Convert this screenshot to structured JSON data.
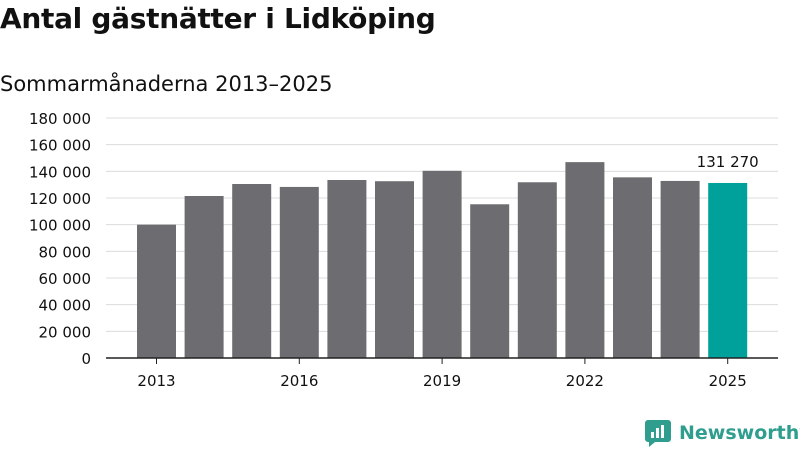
{
  "header": {
    "title": "Antal gästnätter i Lidköping",
    "subtitle": "Sommarmånaderna 2013–2025"
  },
  "colors": {
    "bar": "#6d6c70",
    "highlight": "#00a19a",
    "grid": "#dcdcdc",
    "axis": "#222222",
    "text": "#111111",
    "brand": "#2f9e8e"
  },
  "chart_data": {
    "type": "bar",
    "title": "Antal gästnätter i Lidköping",
    "subtitle": "Sommarmånaderna 2013–2025",
    "xlabel": "",
    "ylabel": "",
    "categories": [
      "2013",
      "2014",
      "2015",
      "2016",
      "2017",
      "2018",
      "2019",
      "2020",
      "2021",
      "2022",
      "2023",
      "2024",
      "2025"
    ],
    "x_tick_labels": [
      "2013",
      "2016",
      "2019",
      "2022",
      "2025"
    ],
    "values": [
      100000,
      121500,
      130500,
      128300,
      133500,
      132600,
      140400,
      115300,
      131800,
      146900,
      135500,
      132800,
      131270
    ],
    "highlight_index": 12,
    "annotation": {
      "index": 12,
      "text": "131 270"
    },
    "ylim": [
      0,
      180000
    ],
    "y_ticks": [
      0,
      20000,
      40000,
      60000,
      80000,
      100000,
      120000,
      140000,
      160000,
      180000
    ],
    "y_tick_labels": [
      "0",
      "20 000",
      "40 000",
      "60 000",
      "80 000",
      "100 000",
      "120 000",
      "140 000",
      "160 000",
      "180 000"
    ],
    "grid": true,
    "legend": "none"
  },
  "brand": {
    "name": "Newsworthy",
    "icon": "newsworthy-logo-icon"
  }
}
